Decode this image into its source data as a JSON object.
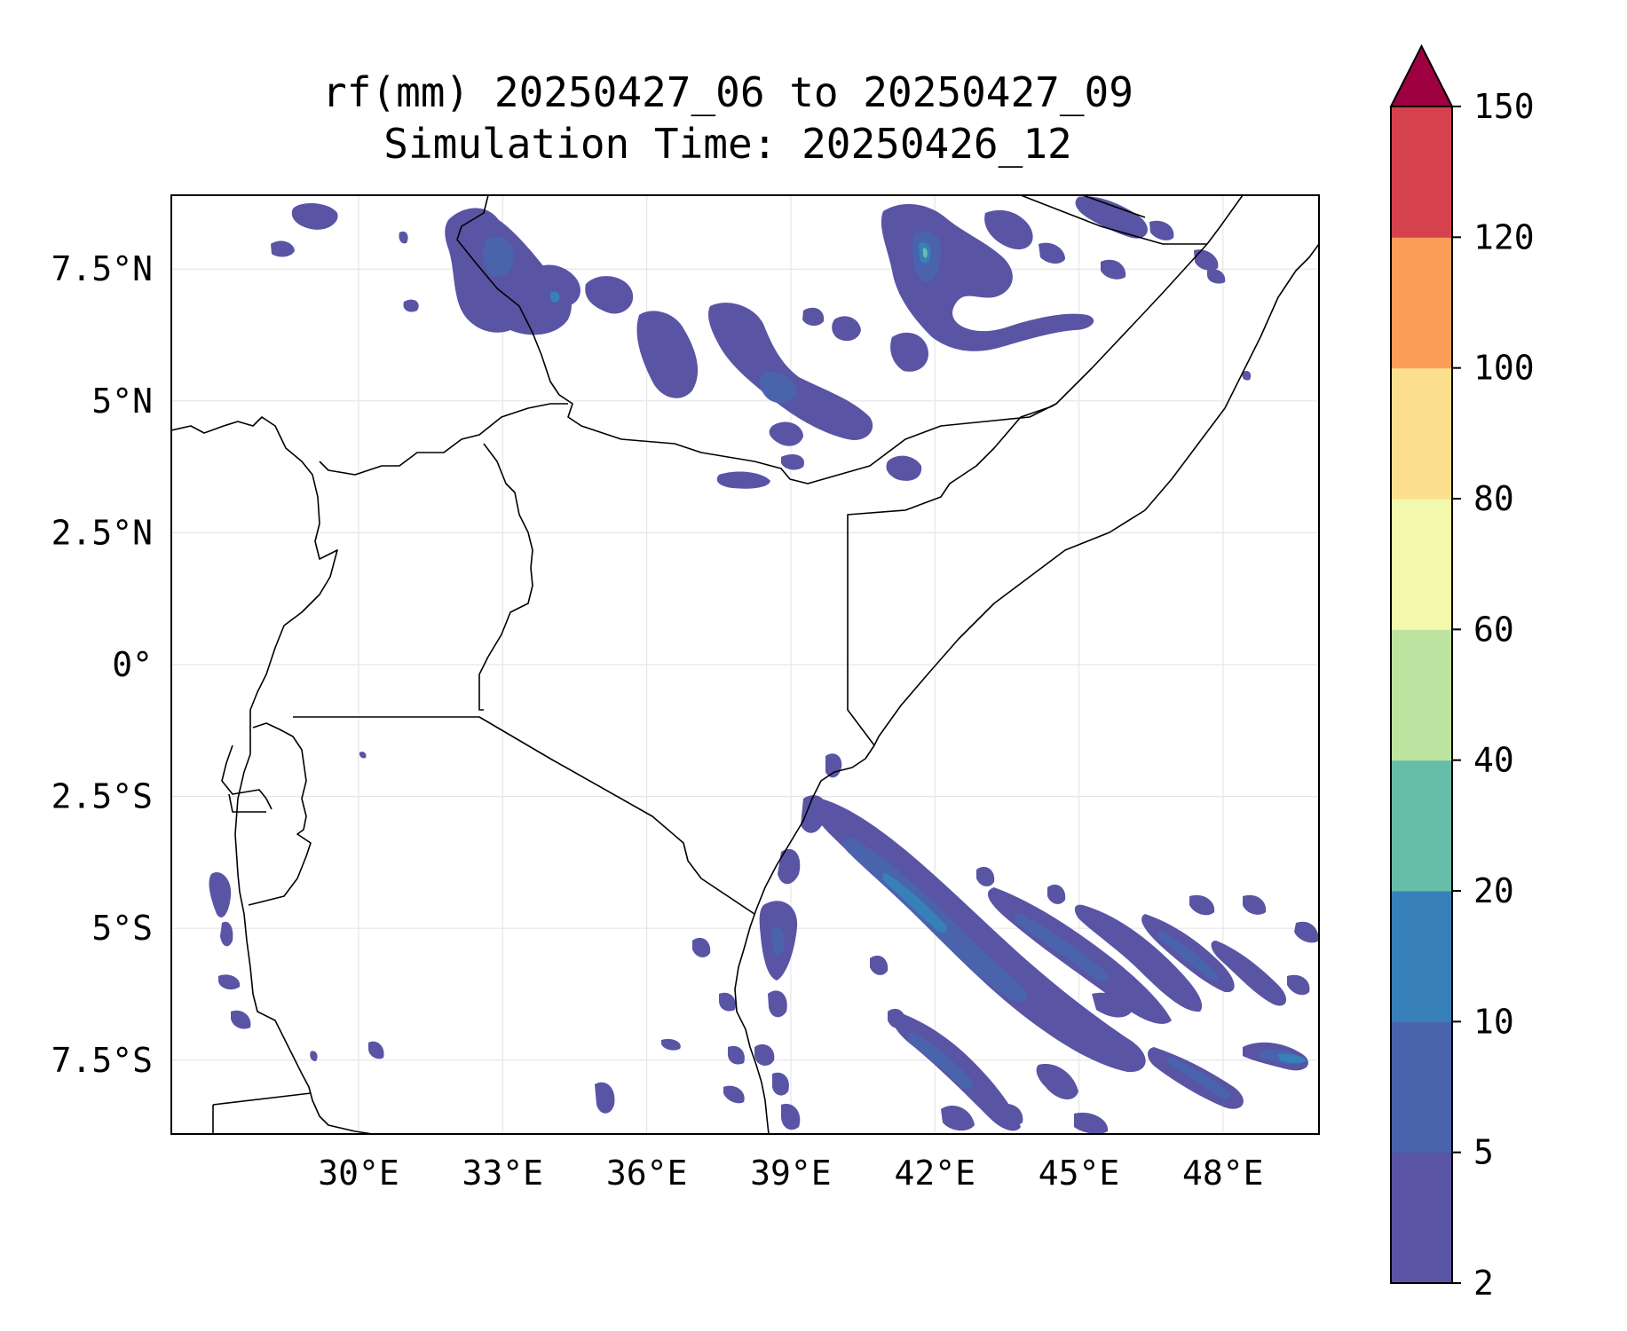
{
  "title": {
    "line1": "rf(mm) 20250427_06 to 20250427_09",
    "line2": "Simulation Time: 20250426_12"
  },
  "map": {
    "lon_range": [
      26.1,
      50.0
    ],
    "lat_range": [
      -8.9,
      8.9
    ],
    "x_ticks": [
      {
        "value": 30,
        "label": "30°E"
      },
      {
        "value": 33,
        "label": "33°E"
      },
      {
        "value": 36,
        "label": "36°E"
      },
      {
        "value": 39,
        "label": "39°E"
      },
      {
        "value": 42,
        "label": "42°E"
      },
      {
        "value": 45,
        "label": "45°E"
      },
      {
        "value": 48,
        "label": "48°E"
      }
    ],
    "y_ticks": [
      {
        "value": 7.5,
        "label": "7.5°N"
      },
      {
        "value": 5,
        "label": "5°N"
      },
      {
        "value": 2.5,
        "label": "2.5°N"
      },
      {
        "value": 0,
        "label": "0°"
      },
      {
        "value": -2.5,
        "label": "2.5°S"
      },
      {
        "value": -5,
        "label": "5°S"
      },
      {
        "value": -7.5,
        "label": "7.5°S"
      }
    ],
    "grid": true
  },
  "colorbar": {
    "levels": [
      "2",
      "5",
      "10",
      "20",
      "40",
      "60",
      "80",
      "100",
      "120",
      "150"
    ],
    "colors": [
      "#5954a4",
      "#4a63ad",
      "#3780b9",
      "#66bea9",
      "#bde3a1",
      "#f3f9ad",
      "#fde08d",
      "#f99d59",
      "#d5414d"
    ],
    "extend_color": "#9e0142"
  },
  "colors": {
    "border": "#000000",
    "grid": "#e6e6e6"
  }
}
